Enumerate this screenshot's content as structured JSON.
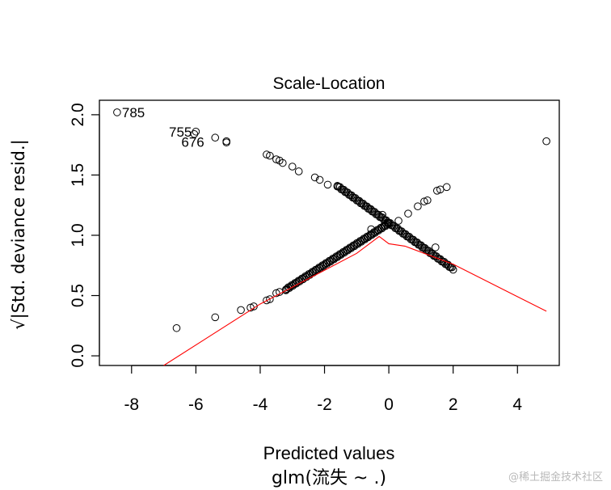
{
  "chart_data": {
    "type": "scatter",
    "title": "Scale-Location",
    "xlabel": "Predicted values",
    "subtitle": "glm(流失 ~ .)",
    "ylabel": "√|Std. deviance resid.|",
    "xlim": [
      -9,
      5.3
    ],
    "ylim": [
      -0.08,
      2.12
    ],
    "x_ticks": [
      -8,
      -6,
      -4,
      -2,
      0,
      2,
      4
    ],
    "y_ticks": [
      0.0,
      0.5,
      1.0,
      1.5,
      2.0
    ],
    "x_tick_labels": [
      "-8",
      "-6",
      "-4",
      "-2",
      "0",
      "2",
      "4"
    ],
    "y_tick_labels": [
      "0.0",
      "0.5",
      "1.0",
      "1.5",
      "2.0"
    ],
    "labeled_points": [
      {
        "label": "785",
        "x": -8.45,
        "y": 2.02
      },
      {
        "label": "755",
        "x": -6.0,
        "y": 1.86
      },
      {
        "label": "676",
        "x": -6.05,
        "y": 1.84
      }
    ],
    "upper_branch": {
      "description": "residuals for observed class 1, decreasing trend",
      "points": [
        [
          -5.4,
          1.81
        ],
        [
          -5.05,
          1.78
        ],
        [
          -5.05,
          1.77
        ],
        [
          -3.8,
          1.67
        ],
        [
          -3.7,
          1.66
        ],
        [
          -3.5,
          1.63
        ],
        [
          -3.4,
          1.62
        ],
        [
          -3.3,
          1.6
        ],
        [
          -3.0,
          1.57
        ],
        [
          -2.8,
          1.53
        ],
        [
          -2.3,
          1.48
        ],
        [
          -2.15,
          1.46
        ],
        [
          -1.9,
          1.42
        ],
        [
          -1.6,
          1.41
        ]
      ],
      "dense_range": {
        "x_from": -1.6,
        "x_to": 2.0,
        "y_from": 1.41,
        "y_to": 0.72
      }
    },
    "lower_branch": {
      "description": "residuals for observed class 0, increasing trend",
      "points": [
        [
          -6.6,
          0.23
        ],
        [
          -5.4,
          0.32
        ],
        [
          -4.6,
          0.38
        ],
        [
          -4.3,
          0.4
        ],
        [
          -4.2,
          0.41
        ],
        [
          -3.8,
          0.46
        ],
        [
          -3.7,
          0.47
        ],
        [
          -3.5,
          0.52
        ],
        [
          -3.4,
          0.53
        ],
        [
          -3.2,
          0.55
        ]
      ],
      "dense_range": {
        "x_from": -3.2,
        "x_to": 0.0,
        "y_from": 0.55,
        "y_to": 1.1
      },
      "tail": [
        [
          0.3,
          1.12
        ],
        [
          0.6,
          1.18
        ],
        [
          0.9,
          1.24
        ],
        [
          1.1,
          1.28
        ],
        [
          1.2,
          1.29
        ],
        [
          1.5,
          1.37
        ],
        [
          1.6,
          1.38
        ],
        [
          1.8,
          1.4
        ]
      ]
    },
    "outliers": [
      [
        4.9,
        1.78
      ],
      [
        1.45,
        0.9
      ],
      [
        -0.2,
        1.17
      ],
      [
        -0.55,
        1.05
      ]
    ],
    "smoother": {
      "color": "#ff0000",
      "points": [
        [
          -7.0,
          -0.08
        ],
        [
          -4.0,
          0.43
        ],
        [
          -2.0,
          0.71
        ],
        [
          -1.0,
          0.85
        ],
        [
          -0.3,
          0.99
        ],
        [
          0.0,
          0.93
        ],
        [
          0.5,
          0.91
        ],
        [
          2.0,
          0.76
        ],
        [
          4.9,
          0.37
        ]
      ]
    },
    "colors": {
      "points": "#000000",
      "smoother": "#ff0000",
      "axes": "#000000"
    }
  },
  "watermark": "@稀土掘金技术社区"
}
